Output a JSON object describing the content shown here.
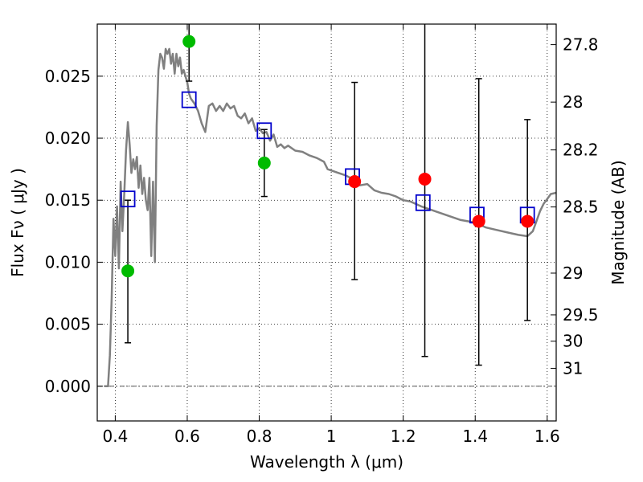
{
  "chart_data": {
    "type": "scatter",
    "xlabel": "Wavelength  λ (μm)",
    "ylabel": "Flux  Fν  ( μJy )",
    "ylabel_right": "Magnitude (AB)",
    "xlim": [
      0.35,
      1.625
    ],
    "ylim": [
      -0.0028,
      0.0292
    ],
    "grid": true,
    "x_ticks": [
      {
        "value": 0.4,
        "label": "0.4"
      },
      {
        "value": 0.6,
        "label": "0.6"
      },
      {
        "value": 0.8,
        "label": "0.8"
      },
      {
        "value": 1.0,
        "label": "1"
      },
      {
        "value": 1.2,
        "label": "1.2"
      },
      {
        "value": 1.4,
        "label": "1.4"
      },
      {
        "value": 1.6,
        "label": "1.6"
      }
    ],
    "y_ticks": [
      {
        "value": 0.0,
        "label": "0.000"
      },
      {
        "value": 0.005,
        "label": "0.005"
      },
      {
        "value": 0.01,
        "label": "0.010"
      },
      {
        "value": 0.015,
        "label": "0.015"
      },
      {
        "value": 0.02,
        "label": "0.020"
      },
      {
        "value": 0.025,
        "label": "0.025"
      }
    ],
    "right_ticks": [
      {
        "value": 27.8,
        "label": "27.8"
      },
      {
        "value": 28.0,
        "label": "28"
      },
      {
        "value": 28.2,
        "label": "28.2"
      },
      {
        "value": 28.5,
        "label": "28.5"
      },
      {
        "value": 29.0,
        "label": "29"
      },
      {
        "value": 29.5,
        "label": "29.5"
      },
      {
        "value": 30.0,
        "label": "30"
      },
      {
        "value": 31.0,
        "label": "31"
      }
    ],
    "model_spectrum": {
      "color": "#808080",
      "x": [
        0.37,
        0.38,
        0.385,
        0.39,
        0.395,
        0.4,
        0.405,
        0.41,
        0.415,
        0.42,
        0.425,
        0.43,
        0.435,
        0.44,
        0.445,
        0.45,
        0.455,
        0.46,
        0.465,
        0.47,
        0.475,
        0.48,
        0.485,
        0.49,
        0.495,
        0.5,
        0.505,
        0.51,
        0.515,
        0.52,
        0.525,
        0.53,
        0.535,
        0.54,
        0.545,
        0.55,
        0.555,
        0.56,
        0.565,
        0.57,
        0.575,
        0.58,
        0.585,
        0.59,
        0.595,
        0.6,
        0.605,
        0.61,
        0.62,
        0.63,
        0.64,
        0.65,
        0.66,
        0.67,
        0.68,
        0.69,
        0.7,
        0.71,
        0.72,
        0.73,
        0.74,
        0.75,
        0.76,
        0.77,
        0.78,
        0.79,
        0.8,
        0.81,
        0.82,
        0.83,
        0.84,
        0.85,
        0.86,
        0.87,
        0.88,
        0.9,
        0.92,
        0.94,
        0.96,
        0.98,
        0.99,
        1.0,
        1.02,
        1.04,
        1.06,
        1.08,
        1.1,
        1.12,
        1.14,
        1.16,
        1.18,
        1.2,
        1.22,
        1.25,
        1.28,
        1.3,
        1.33,
        1.36,
        1.4,
        1.43,
        1.46,
        1.49,
        1.52,
        1.545,
        1.56,
        1.57,
        1.58,
        1.59,
        1.6,
        1.61,
        1.625
      ],
      "y": [
        0.0,
        0.0,
        0.0025,
        0.007,
        0.0135,
        0.0105,
        0.0145,
        0.0095,
        0.0165,
        0.0125,
        0.0155,
        0.019,
        0.0213,
        0.0195,
        0.0172,
        0.0183,
        0.0175,
        0.0185,
        0.016,
        0.0178,
        0.0155,
        0.0168,
        0.015,
        0.0142,
        0.0168,
        0.0105,
        0.0165,
        0.01,
        0.021,
        0.0255,
        0.0268,
        0.0265,
        0.0256,
        0.0272,
        0.0268,
        0.0272,
        0.026,
        0.0268,
        0.0252,
        0.0268,
        0.0258,
        0.0265,
        0.0252,
        0.0255,
        0.025,
        0.0245,
        0.0236,
        0.0232,
        0.0228,
        0.0222,
        0.0212,
        0.0205,
        0.0226,
        0.0228,
        0.0222,
        0.0226,
        0.0222,
        0.0228,
        0.0224,
        0.0226,
        0.0218,
        0.0216,
        0.022,
        0.0212,
        0.0216,
        0.0206,
        0.0208,
        0.0204,
        0.0205,
        0.0198,
        0.0203,
        0.0193,
        0.0195,
        0.0192,
        0.0194,
        0.019,
        0.0189,
        0.0186,
        0.0184,
        0.0181,
        0.0175,
        0.0174,
        0.0172,
        0.017,
        0.0167,
        0.0162,
        0.0163,
        0.0158,
        0.0156,
        0.0155,
        0.0153,
        0.015,
        0.0149,
        0.0145,
        0.0142,
        0.014,
        0.0137,
        0.0134,
        0.0132,
        0.0128,
        0.0126,
        0.0124,
        0.0122,
        0.0121,
        0.0125,
        0.0133,
        0.0141,
        0.0147,
        0.0151,
        0.0155,
        0.0156
      ]
    },
    "model_photometry": {
      "marker": "open-square",
      "color": "#0000cc",
      "x": [
        0.435,
        0.605,
        0.814,
        1.059,
        1.255,
        1.405,
        1.545
      ],
      "y": [
        0.0151,
        0.0231,
        0.0206,
        0.0169,
        0.0148,
        0.0138,
        0.0138
      ]
    },
    "observed": [
      {
        "x": 0.435,
        "y": 0.0093,
        "err_low": 0.0035,
        "err_high": 0.015,
        "color": "#00bb00"
      },
      {
        "x": 0.605,
        "y": 0.0278,
        "err_low": 0.0246,
        "err_high": 0.0292,
        "color": "#00bb00"
      },
      {
        "x": 0.814,
        "y": 0.018,
        "err_low": 0.0153,
        "err_high": 0.0207,
        "color": "#00bb00"
      },
      {
        "x": 1.065,
        "y": 0.0165,
        "err_low": 0.0086,
        "err_high": 0.0245,
        "color": "#ff0000"
      },
      {
        "x": 1.26,
        "y": 0.0167,
        "err_low": 0.0024,
        "err_high": 0.0292,
        "color": "#ff0000"
      },
      {
        "x": 1.41,
        "y": 0.0133,
        "err_low": 0.0017,
        "err_high": 0.0248,
        "color": "#ff0000"
      },
      {
        "x": 1.545,
        "y": 0.0133,
        "err_low": 0.0053,
        "err_high": 0.0215,
        "color": "#ff0000"
      }
    ]
  }
}
